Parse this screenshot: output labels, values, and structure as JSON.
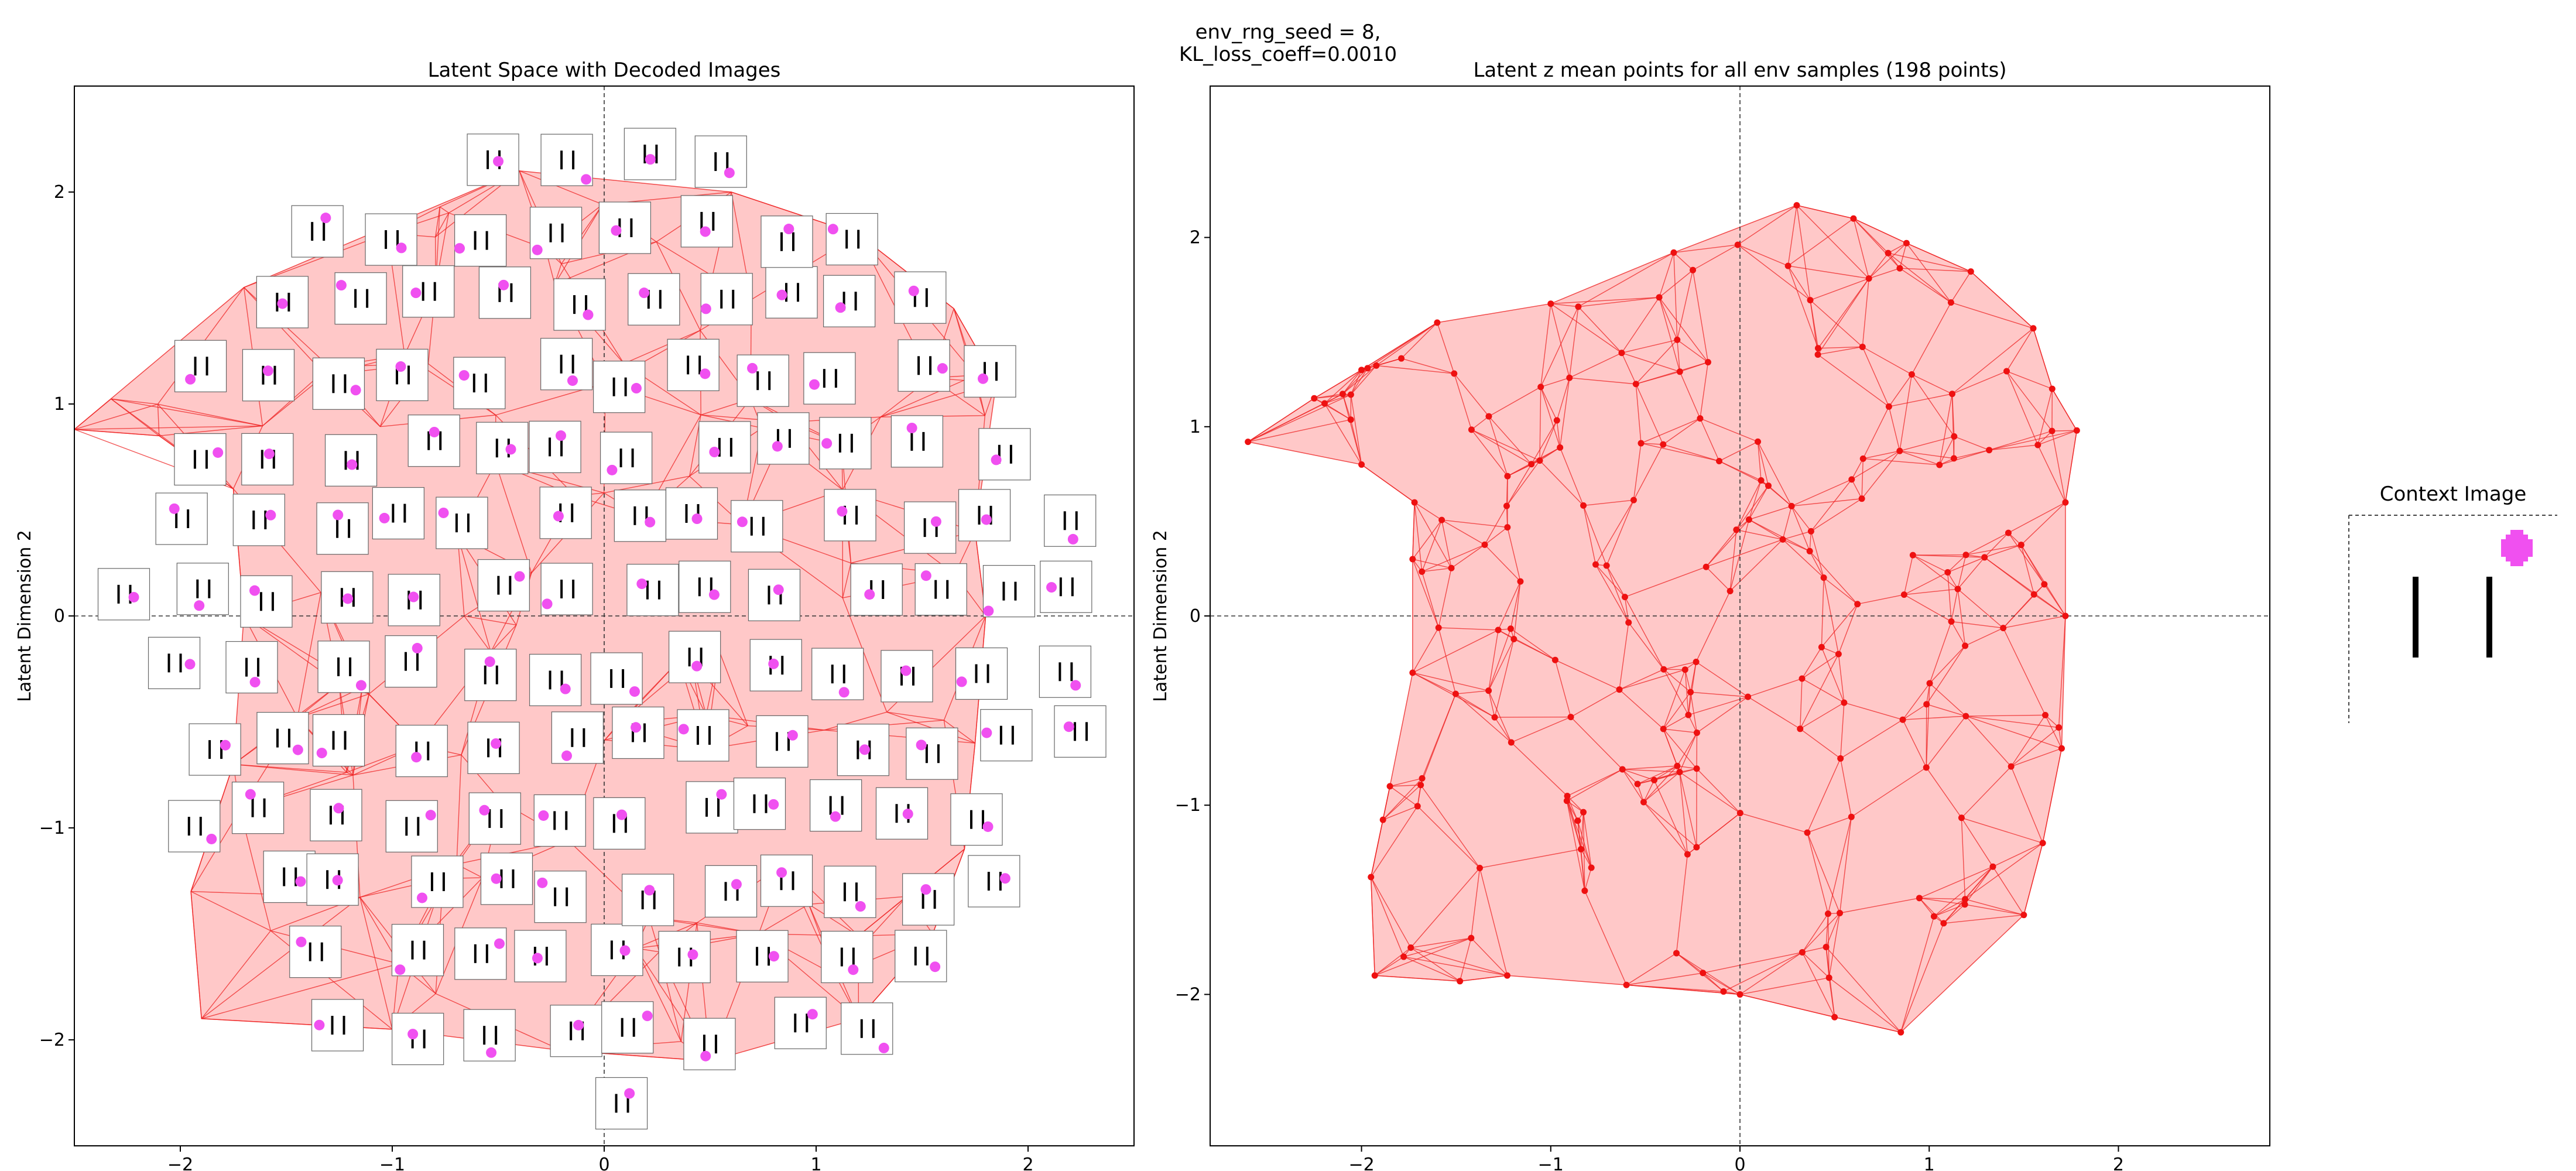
{
  "figure": {
    "suptitle_line1": "env_rng_seed = 8,",
    "suptitle_line2": "KL_loss_coeff=0.0010"
  },
  "chart_data": [
    {
      "type": "scatter",
      "title": "Latent Space with Decoded Images",
      "xlabel": "",
      "ylabel": "Latent Dimension 2",
      "xlim": [
        -2.5,
        2.5
      ],
      "ylim": [
        -2.5,
        2.5
      ],
      "xticks": [
        -2,
        -1,
        0,
        1,
        2
      ],
      "yticks": [
        -2,
        -1,
        0,
        1,
        2
      ],
      "hull": [
        [
          -2.5,
          0.88
        ],
        [
          -1.7,
          1.55
        ],
        [
          -0.4,
          2.1
        ],
        [
          0.6,
          2.0
        ],
        [
          1.2,
          1.8
        ],
        [
          1.65,
          1.45
        ],
        [
          1.85,
          1.1
        ],
        [
          1.75,
          0.4
        ],
        [
          1.8,
          0.0
        ],
        [
          1.75,
          -0.6
        ],
        [
          1.7,
          -1.1
        ],
        [
          1.55,
          -1.5
        ],
        [
          1.2,
          -1.9
        ],
        [
          0.5,
          -2.1
        ],
        [
          -0.2,
          -2.05
        ],
        [
          -1.0,
          -1.95
        ],
        [
          -1.9,
          -1.9
        ],
        [
          -1.95,
          -1.3
        ],
        [
          -1.75,
          -0.7
        ],
        [
          -1.7,
          0.0
        ],
        [
          -1.75,
          0.6
        ],
        [
          -2.1,
          0.85
        ]
      ],
      "mesh_lines": "Delaunay triangulation of latent mean points",
      "decoded_tiles": "grid of decoded images (two vertical bars and a magenta dot)",
      "fill_color": "#ffc8c8",
      "line_color": "#ee2222",
      "dot_color": "#f050f0"
    },
    {
      "type": "scatter",
      "title": "Latent z mean points for all env samples (198 points)",
      "xlabel": "",
      "ylabel": "Latent Dimension 2",
      "xlim": [
        -2.8,
        2.8
      ],
      "ylim": [
        -2.8,
        2.8
      ],
      "xticks": [
        -2,
        -1,
        0,
        1,
        2
      ],
      "yticks": [
        -2,
        -1,
        0,
        1,
        2
      ],
      "n_points": 198,
      "hull": [
        [
          -2.6,
          0.92
        ],
        [
          -2.25,
          1.15
        ],
        [
          -2.0,
          1.3
        ],
        [
          -1.6,
          1.55
        ],
        [
          -1.0,
          1.65
        ],
        [
          -0.35,
          1.92
        ],
        [
          0.3,
          2.17
        ],
        [
          0.6,
          2.1
        ],
        [
          0.88,
          1.97
        ],
        [
          1.22,
          1.82
        ],
        [
          1.55,
          1.52
        ],
        [
          1.65,
          1.2
        ],
        [
          1.78,
          0.98
        ],
        [
          1.72,
          0.6
        ],
        [
          1.72,
          0.0
        ],
        [
          1.7,
          -0.7
        ],
        [
          1.6,
          -1.2
        ],
        [
          1.5,
          -1.58
        ],
        [
          0.85,
          -2.2
        ],
        [
          0.5,
          -2.12
        ],
        [
          0.0,
          -2.0
        ],
        [
          -0.6,
          -1.95
        ],
        [
          -1.23,
          -1.9
        ],
        [
          -1.48,
          -1.93
        ],
        [
          -1.93,
          -1.9
        ],
        [
          -1.95,
          -1.38
        ],
        [
          -1.85,
          -0.9
        ],
        [
          -1.73,
          -0.3
        ],
        [
          -1.73,
          0.3
        ],
        [
          -1.72,
          0.6
        ],
        [
          -2.0,
          0.8
        ]
      ],
      "line_color": "#ee2222",
      "fill_color": "#ffc8c8"
    }
  ],
  "context": {
    "title": "Context Image"
  },
  "colors": {
    "mesh_fill": "#ffc8c8",
    "mesh_edge": "#ee2222",
    "dot": "#f050f0",
    "bar": "#000000"
  }
}
